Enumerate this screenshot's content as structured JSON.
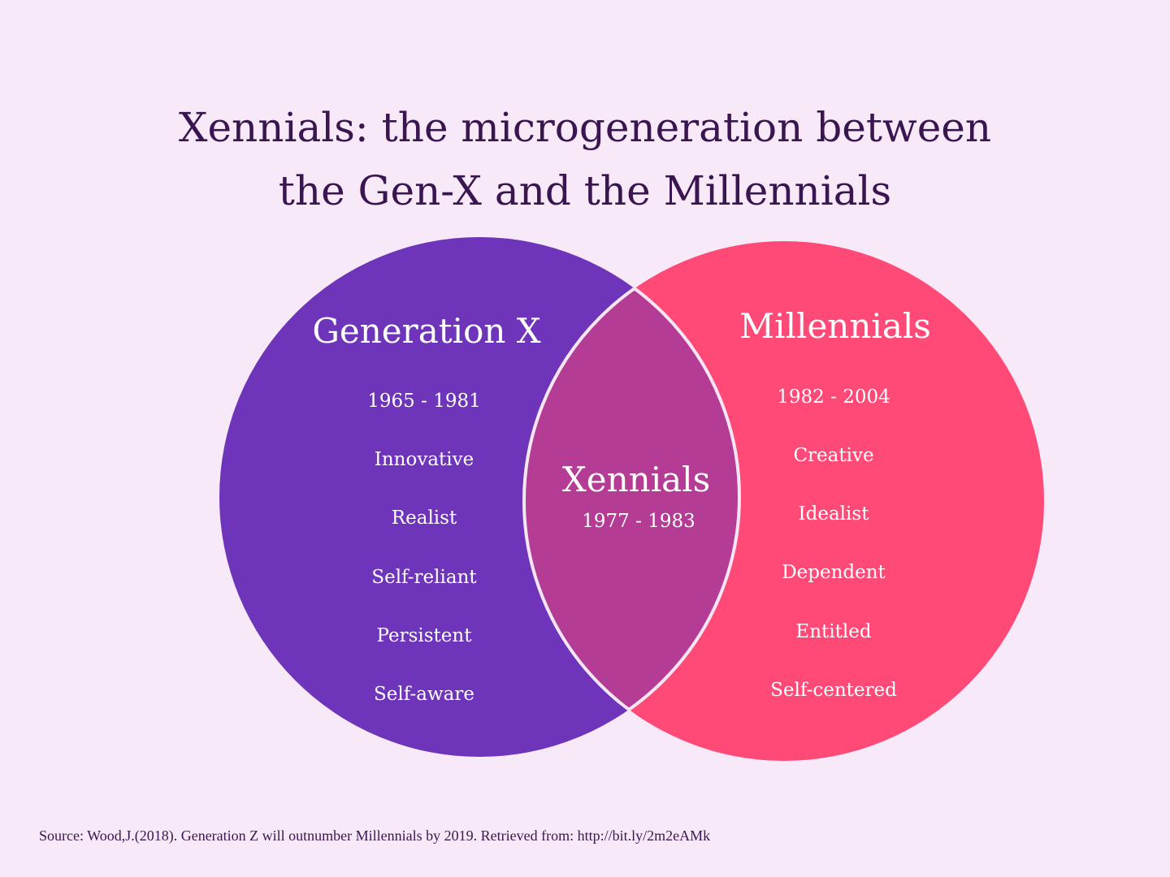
{
  "title": {
    "line1": "Xennials: the microgeneration between",
    "line2": "the Gen-X and the Millennials"
  },
  "colors": {
    "background": "#f8e9f9",
    "gen_x": "#6e35ba",
    "millennials": "#ff4a78",
    "overlap": "#b53c95",
    "outline": "#f5e6f5"
  },
  "gen_x": {
    "heading": "Generation X",
    "items": [
      "1965 - 1981",
      "Innovative",
      "Realist",
      "Self-reliant",
      "Persistent",
      "Self-aware"
    ]
  },
  "millennials": {
    "heading": "Millennials",
    "items": [
      "1982 - 2004",
      "Creative",
      "Idealist",
      "Dependent",
      "Entitled",
      "Self-centered"
    ]
  },
  "xennials": {
    "heading": "Xennials",
    "years": "1977 - 1983"
  },
  "source": "Source: Wood,J.(2018). Generation Z will outnumber Millennials by 2019. Retrieved from: http://bit.ly/2m2eAMk"
}
